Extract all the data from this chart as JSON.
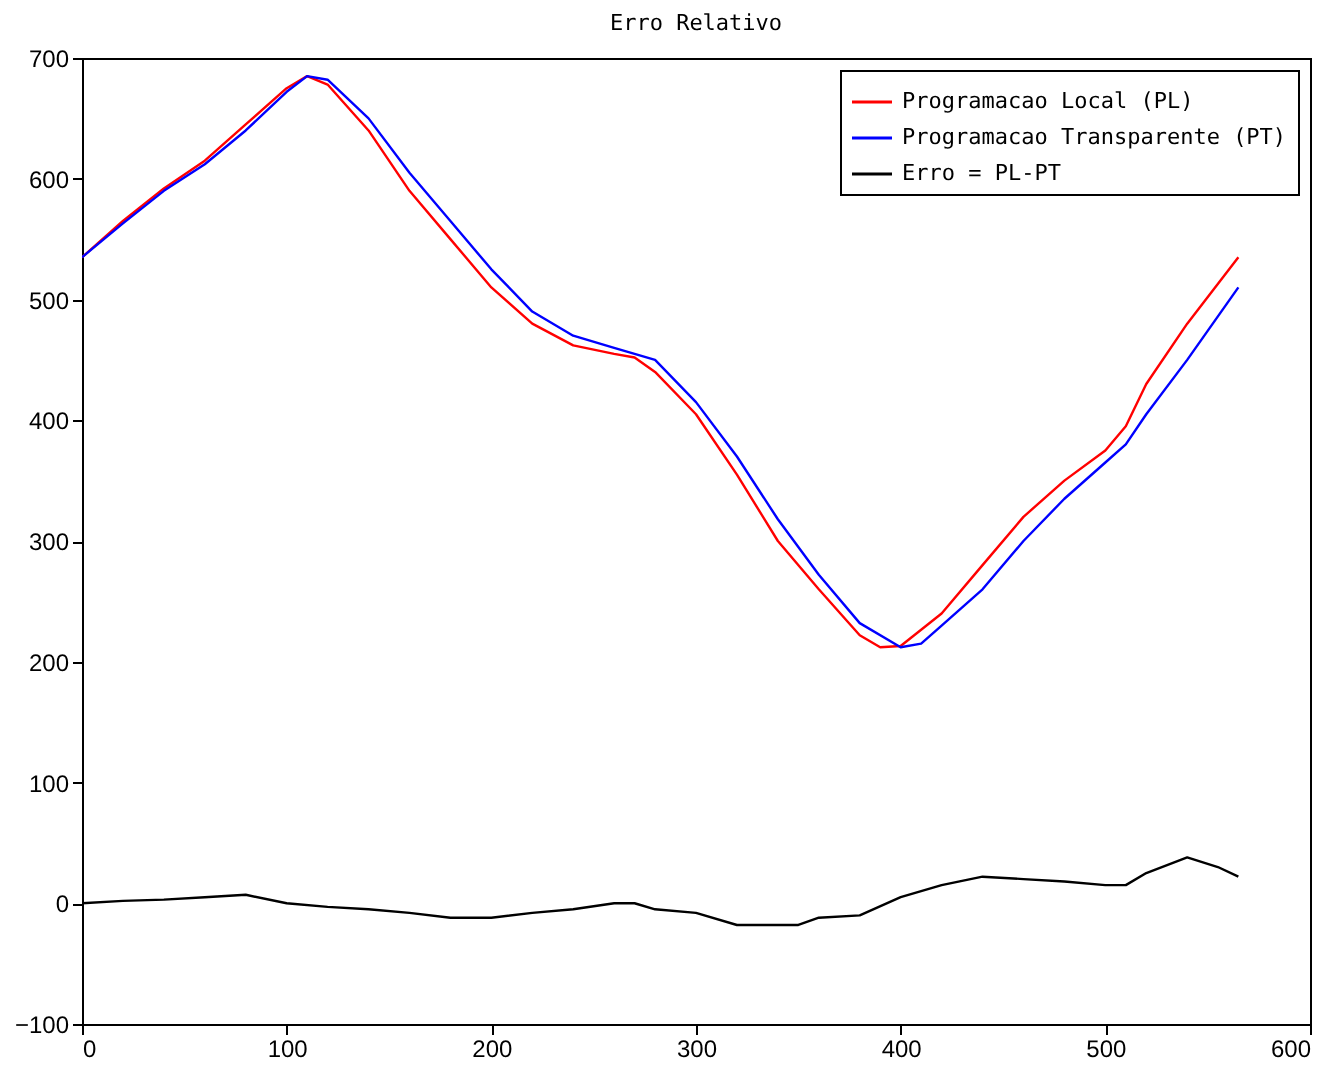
{
  "chart_data": {
    "type": "line",
    "title": "Erro Relativo",
    "xlim": [
      0,
      600
    ],
    "xticks": [
      0,
      100,
      200,
      300,
      400,
      500,
      600
    ],
    "ylim": [
      -100,
      700
    ],
    "yticks": [
      -100,
      0,
      100,
      200,
      300,
      400,
      500,
      600,
      700
    ],
    "grid": false,
    "legend": "top right",
    "series": [
      {
        "name": "Programacao Local (PL)",
        "color": "#ff0000",
        "x": [
          0,
          20,
          40,
          60,
          80,
          100,
          110,
          120,
          140,
          160,
          180,
          200,
          220,
          240,
          260,
          270,
          280,
          300,
          320,
          340,
          360,
          380,
          390,
          400,
          420,
          440,
          460,
          480,
          500,
          510,
          520,
          540,
          565
        ],
        "values": [
          535,
          565,
          592,
          615,
          645,
          675,
          685,
          678,
          640,
          590,
          550,
          510,
          480,
          462,
          455,
          452,
          440,
          405,
          355,
          300,
          260,
          222,
          212,
          213,
          240,
          280,
          320,
          350,
          375,
          395,
          430,
          480,
          535
        ]
      },
      {
        "name": "Programacao Transparente (PT)",
        "color": "#0000ff",
        "x": [
          0,
          20,
          40,
          60,
          80,
          100,
          110,
          120,
          140,
          160,
          180,
          200,
          220,
          240,
          260,
          270,
          280,
          300,
          320,
          340,
          360,
          380,
          400,
          410,
          420,
          440,
          460,
          480,
          500,
          510,
          520,
          540,
          565
        ],
        "values": [
          535,
          563,
          590,
          612,
          640,
          672,
          685,
          682,
          650,
          605,
          565,
          525,
          490,
          470,
          460,
          455,
          450,
          415,
          370,
          318,
          272,
          232,
          212,
          215,
          230,
          260,
          300,
          335,
          365,
          380,
          405,
          450,
          510
        ]
      },
      {
        "name": "Erro = PL-PT",
        "color": "#000000",
        "x": [
          0,
          20,
          40,
          60,
          80,
          100,
          120,
          140,
          160,
          180,
          200,
          220,
          240,
          260,
          270,
          280,
          300,
          320,
          340,
          350,
          360,
          380,
          400,
          420,
          440,
          460,
          480,
          500,
          510,
          520,
          540,
          555,
          565
        ],
        "values": [
          0,
          2,
          3,
          5,
          7,
          0,
          -3,
          -5,
          -8,
          -12,
          -12,
          -8,
          -5,
          0,
          0,
          -5,
          -8,
          -18,
          -18,
          -18,
          -12,
          -10,
          5,
          15,
          22,
          20,
          18,
          15,
          15,
          25,
          38,
          30,
          22
        ]
      }
    ]
  }
}
